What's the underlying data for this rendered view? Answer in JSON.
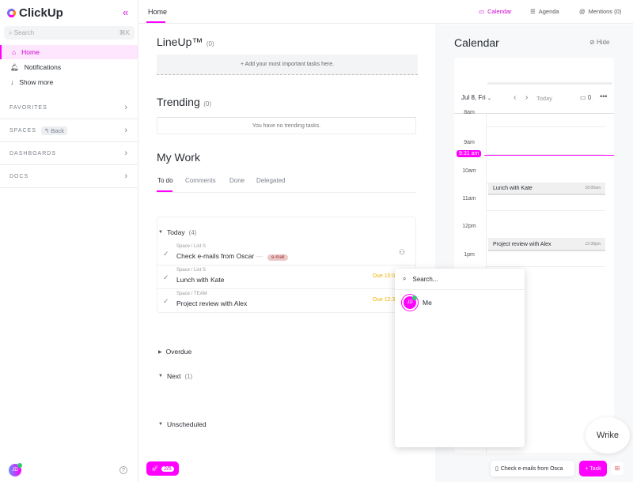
{
  "app": {
    "name": "ClickUp"
  },
  "sidebar": {
    "search_placeholder": "Search",
    "search_shortcut": "⌘K",
    "items": [
      {
        "label": "Home",
        "icon": "home-icon"
      },
      {
        "label": "Notifications",
        "icon": "bell-icon"
      },
      {
        "label": "Show more",
        "icon": "arrow-down-icon"
      }
    ],
    "sections": [
      {
        "label": "FAVORITES"
      },
      {
        "label": "SPACES",
        "extra": "Back"
      },
      {
        "label": "DASHBOARDS"
      },
      {
        "label": "DOCS"
      }
    ],
    "user_initials": "JD"
  },
  "topbar": {
    "home_tab": "Home",
    "calendar": "Calendar",
    "agenda": "Agenda",
    "mentions": "Mentions (0)"
  },
  "main": {
    "lineup_title": "LineUp™",
    "lineup_count": "(0)",
    "lineup_add": "+ Add your most important tasks here.",
    "trending_title": "Trending",
    "trending_count": "(0)",
    "trending_empty": "You have no trending tasks.",
    "mywork_title": "My Work",
    "tabs": [
      "To do",
      "Comments",
      "Done",
      "Delegated"
    ],
    "groups": {
      "today": "Today",
      "today_count": "(4)",
      "overdue": "Overdue",
      "next": "Next",
      "next_count": "(1)",
      "unscheduled": "Unscheduled"
    },
    "tasks": [
      {
        "crumb": "Space / List S",
        "name": "Check e-mails from Oscar",
        "tag": "e-mail"
      },
      {
        "crumb": "Space / List S",
        "name": "Lunch with Kate",
        "due": "Due 10:0"
      },
      {
        "crumb": "Space / TEAM",
        "name": "Project review with Alex",
        "due": "Due 12:3"
      }
    ],
    "bottom_badge": "2/5"
  },
  "calendar": {
    "title": "Calendar",
    "hide": "Hide",
    "date": "Jul 8, Fri",
    "today": "Today",
    "count": "0",
    "hours": [
      "8am",
      "9am",
      "10am",
      "11am",
      "12pm",
      "1pm"
    ],
    "now": "9:31 am",
    "events": [
      {
        "name": "Lunch with Kate",
        "time": "10:00am"
      },
      {
        "name": "Project review with Alex",
        "time": "12:30pm"
      }
    ]
  },
  "popup": {
    "search_placeholder": "Search...",
    "me": "Me",
    "initials": "JD"
  },
  "footer": {
    "tray_task": "Check e-mails from Osca",
    "task_button": "+ Task",
    "wrike": "Wrike"
  },
  "colors": {
    "accent": "#ff00ff",
    "due": "#f0b400"
  }
}
